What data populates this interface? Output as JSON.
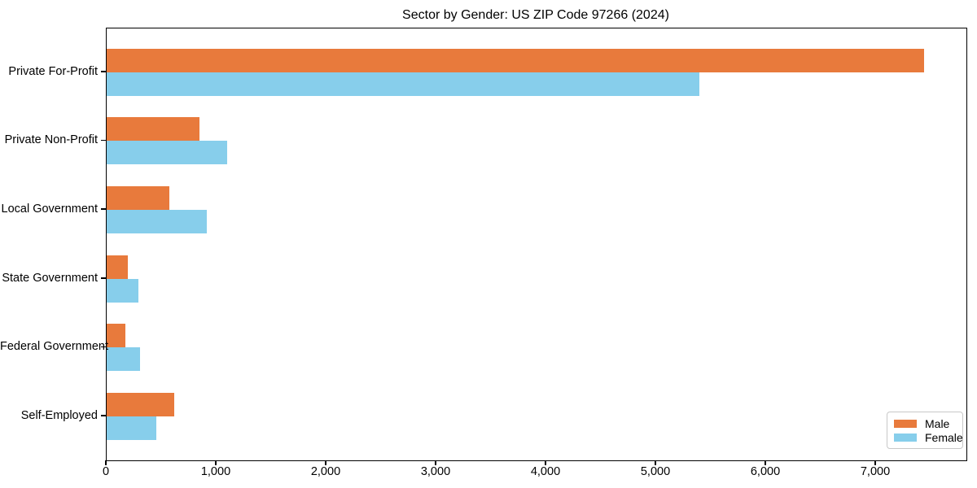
{
  "title": "Sector by Gender: US ZIP Code 97266 (2024)",
  "colors": {
    "male_bar": "#E87A3C",
    "female_bar": "#87CEEB",
    "axis_spine": "#000000",
    "legend_border": "#c8c8c8",
    "background": "#ffffff"
  },
  "chart_data": {
    "type": "bar",
    "orientation": "horizontal",
    "title": "Sector by Gender: US ZIP Code 97266 (2024)",
    "xlabel": "",
    "ylabel": "",
    "categories": [
      "Private For-Profit",
      "Private Non-Profit",
      "Local Government",
      "State Government",
      "Federal Government",
      "Self-Employed"
    ],
    "series": [
      {
        "name": "Male",
        "color": "#E87A3C",
        "values": [
          7440,
          845,
          570,
          190,
          170,
          615
        ]
      },
      {
        "name": "Female",
        "color": "#87CEEB",
        "values": [
          5390,
          1095,
          910,
          290,
          300,
          450
        ]
      }
    ],
    "xlim": [
      0,
      7822
    ],
    "xticks": [
      0,
      1000,
      2000,
      3000,
      4000,
      5000,
      6000,
      7000
    ],
    "xtick_labels": [
      "0",
      "1,000",
      "2,000",
      "3,000",
      "4,000",
      "5,000",
      "6,000",
      "7,000"
    ],
    "grid": false,
    "legend": {
      "position": "lower right",
      "entries": [
        "Male",
        "Female"
      ]
    }
  }
}
